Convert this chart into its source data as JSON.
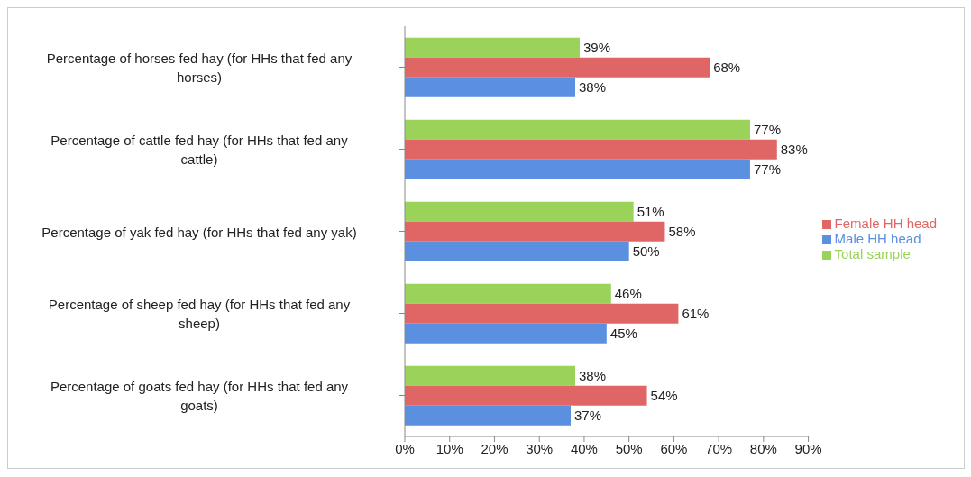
{
  "chart_data": {
    "type": "bar",
    "orientation": "horizontal",
    "categories": [
      "Percentage of horses fed hay (for HHs that fed any horses)",
      "Percentage of cattle fed hay (for HHs that fed any cattle)",
      "Percentage of yak fed hay (for HHs that fed any yak)",
      "Percentage of sheep fed hay (for HHs that fed any sheep)",
      "Percentage of goats fed hay (for HHs that fed any goats)"
    ],
    "series": [
      {
        "name": "Total sample",
        "color": "#9bd25a",
        "values": [
          39,
          77,
          51,
          46,
          38
        ],
        "value_labels": [
          "39%",
          "77%",
          "51%",
          "46%",
          "38%"
        ]
      },
      {
        "name": "Female HH head",
        "color": "#e06666",
        "values": [
          68,
          83,
          58,
          61,
          54
        ],
        "value_labels": [
          "68%",
          "83%",
          "58%",
          "61%",
          "54%"
        ]
      },
      {
        "name": "Male HH head",
        "color": "#5b8fe0",
        "values": [
          38,
          77,
          50,
          45,
          37
        ],
        "value_labels": [
          "38%",
          "77%",
          "50%",
          "45%",
          "37%"
        ]
      }
    ],
    "xlim": [
      0,
      90
    ],
    "xticks": [
      {
        "value": 0,
        "label": "0%"
      },
      {
        "value": 10,
        "label": "10%"
      },
      {
        "value": 20,
        "label": "20%"
      },
      {
        "value": 30,
        "label": "30%"
      },
      {
        "value": 40,
        "label": "40%"
      },
      {
        "value": 50,
        "label": "50%"
      },
      {
        "value": 60,
        "label": "60%"
      },
      {
        "value": 70,
        "label": "70%"
      },
      {
        "value": 80,
        "label": "80%"
      },
      {
        "value": 90,
        "label": "90%"
      }
    ],
    "grid": false,
    "legend": "right"
  }
}
